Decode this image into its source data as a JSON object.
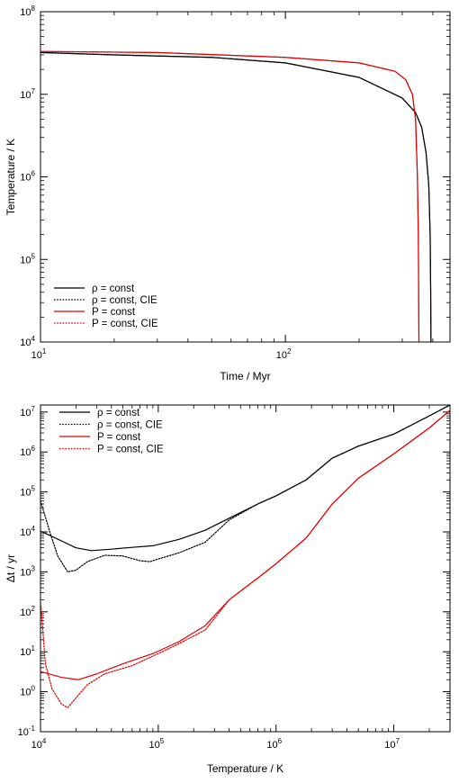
{
  "chart_data": [
    {
      "type": "line",
      "xlabel": "Time / Myr",
      "ylabel": "Temperature / K",
      "xscale": "log",
      "yscale": "log",
      "xlim": [
        10,
        470
      ],
      "ylim": [
        10000,
        100000000
      ],
      "x_ticks": [
        {
          "value": 10,
          "base": "10",
          "exp": "1"
        },
        {
          "value": 100,
          "base": "10",
          "exp": "2"
        }
      ],
      "y_ticks": [
        {
          "value": 10000,
          "base": "10",
          "exp": "4"
        },
        {
          "value": 100000,
          "base": "10",
          "exp": "5"
        },
        {
          "value": 1000000,
          "base": "10",
          "exp": "6"
        },
        {
          "value": 10000000,
          "base": "10",
          "exp": "7"
        },
        {
          "value": 100000000,
          "base": "10",
          "exp": "8"
        }
      ],
      "legend_position": "bottom-left",
      "series": [
        {
          "name": "ρ = const",
          "color": "#000000",
          "dash": "solid",
          "x": [
            10,
            20,
            50,
            100,
            200,
            300,
            340,
            360,
            375,
            385,
            390,
            392,
            393
          ],
          "y": [
            32000000,
            30000000,
            28000000,
            24000000,
            16000000,
            9000000,
            6000000,
            4000000,
            2000000,
            800000,
            200000,
            40000,
            10000
          ]
        },
        {
          "name": "ρ = const, CIE",
          "color": "#000000",
          "dash": "dotted",
          "x": [
            10,
            20,
            50,
            100,
            200,
            300,
            340,
            360,
            375,
            385,
            390,
            392,
            393
          ],
          "y": [
            32000000,
            30000000,
            28000000,
            24000000,
            16000000,
            9000000,
            6000000,
            4000000,
            2000000,
            800000,
            200000,
            40000,
            10000
          ]
        },
        {
          "name": "P = const",
          "color": "#e00000",
          "dash": "solid",
          "x": [
            10,
            30,
            100,
            200,
            280,
            310,
            330,
            340,
            346,
            349,
            350,
            351
          ],
          "y": [
            33000000,
            32000000,
            28000000,
            24000000,
            19000000,
            15000000,
            10000000,
            5000000,
            1000000,
            200000,
            40000,
            10000
          ]
        },
        {
          "name": "P = const, CIE",
          "color": "#e00000",
          "dash": "dotted",
          "x": [
            10,
            30,
            100,
            200,
            280,
            310,
            330,
            340,
            346,
            349,
            350,
            351
          ],
          "y": [
            33000000,
            32000000,
            28000000,
            24000000,
            19000000,
            15000000,
            10000000,
            5000000,
            1000000,
            200000,
            40000,
            10000
          ]
        }
      ]
    },
    {
      "type": "line",
      "xlabel": "Temperature / K",
      "ylabel": "Δt / yr",
      "xscale": "log",
      "yscale": "log",
      "xlim": [
        10000,
        30000000
      ],
      "ylim": [
        0.1,
        15000000
      ],
      "x_ticks": [
        {
          "value": 10000,
          "base": "10",
          "exp": "4"
        },
        {
          "value": 100000,
          "base": "10",
          "exp": "5"
        },
        {
          "value": 1000000,
          "base": "10",
          "exp": "6"
        },
        {
          "value": 10000000,
          "base": "10",
          "exp": "7"
        }
      ],
      "y_ticks": [
        {
          "value": 0.1,
          "base": "10",
          "exp": "-1"
        },
        {
          "value": 1,
          "base": "10",
          "exp": "0"
        },
        {
          "value": 10,
          "base": "10",
          "exp": "1"
        },
        {
          "value": 100,
          "base": "10",
          "exp": "2"
        },
        {
          "value": 1000,
          "base": "10",
          "exp": "3"
        },
        {
          "value": 10000,
          "base": "10",
          "exp": "4"
        },
        {
          "value": 100000,
          "base": "10",
          "exp": "5"
        },
        {
          "value": 1000000,
          "base": "10",
          "exp": "6"
        },
        {
          "value": 10000000,
          "base": "10",
          "exp": "7"
        }
      ],
      "legend_position": "top-left",
      "series": [
        {
          "name": "ρ = const",
          "color": "#000000",
          "dash": "solid",
          "x": [
            10000,
            15000,
            20000,
            27000,
            40000,
            60000,
            90000,
            150000,
            250000,
            400000,
            700000,
            1000000,
            1800000,
            3000000,
            5000000,
            10000000,
            20000000,
            30000000
          ],
          "y": [
            10500,
            6000,
            4000,
            3400,
            3700,
            4100,
            4500,
            6500,
            11000,
            22000,
            50000,
            80000,
            200000,
            700000,
            1400000,
            2800000,
            8000000,
            15000000
          ]
        },
        {
          "name": "ρ = const, CIE",
          "color": "#000000",
          "dash": "dotted",
          "x": [
            10000,
            12000,
            14000,
            17000,
            20000,
            25000,
            35000,
            50000,
            70000,
            85000,
            100000,
            150000,
            250000,
            400000,
            700000,
            1000000,
            1800000,
            3000000,
            5000000,
            10000000,
            20000000,
            30000000
          ],
          "y": [
            60000,
            10000,
            2500,
            1000,
            1100,
            1800,
            2600,
            2500,
            1900,
            1800,
            2100,
            3000,
            5500,
            20000,
            50000,
            80000,
            200000,
            700000,
            1400000,
            2800000,
            8000000,
            15000000
          ]
        },
        {
          "name": "P = const",
          "color": "#e00000",
          "dash": "solid",
          "x": [
            10000,
            15000,
            21000,
            30000,
            50000,
            90000,
            150000,
            250000,
            400000,
            700000,
            1000000,
            1800000,
            3000000,
            5000000,
            10000000,
            20000000,
            30000000
          ],
          "y": [
            3.2,
            2.3,
            2.0,
            2.8,
            5.0,
            9.0,
            18,
            45,
            200,
            700,
            1600,
            7000,
            50000,
            220000,
            900000,
            4000000,
            11000000
          ]
        },
        {
          "name": "P = const, CIE",
          "color": "#e00000",
          "dash": "dotted",
          "x": [
            10000,
            11000,
            12500,
            15000,
            17000,
            20000,
            25000,
            35000,
            60000,
            100000,
            150000,
            250000,
            400000,
            700000,
            1000000,
            1800000,
            3000000,
            5000000,
            10000000,
            20000000,
            30000000
          ],
          "y": [
            200,
            5,
            1.2,
            0.5,
            0.4,
            0.7,
            1.5,
            2.8,
            4.5,
            9,
            16,
            35,
            200,
            700,
            1600,
            7000,
            50000,
            220000,
            900000,
            4000000,
            11000000
          ]
        }
      ]
    }
  ]
}
